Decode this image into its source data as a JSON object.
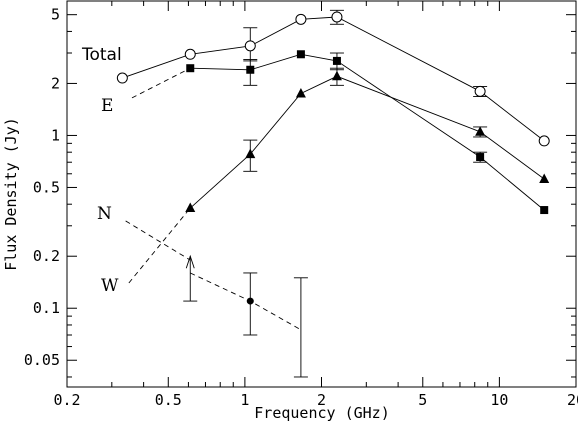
{
  "chart_data": {
    "type": "scatter",
    "title": "",
    "xlabel": "Frequency (GHz)",
    "ylabel": "Flux Density (Jy)",
    "xscale": "log",
    "yscale": "log",
    "xlim": [
      0.2,
      20
    ],
    "ylim": [
      0.035,
      6
    ],
    "x_ticks": [
      {
        "value": 0.2,
        "label": "0.2"
      },
      {
        "value": 0.5,
        "label": "0.5"
      },
      {
        "value": 1,
        "label": "1"
      },
      {
        "value": 2,
        "label": "2"
      },
      {
        "value": 5,
        "label": "5"
      },
      {
        "value": 10,
        "label": "10"
      },
      {
        "value": 20,
        "label": "20"
      }
    ],
    "y_ticks": [
      {
        "value": 0.05,
        "label": "0.05"
      },
      {
        "value": 0.1,
        "label": "0.1"
      },
      {
        "value": 0.2,
        "label": "0.2"
      },
      {
        "value": 0.5,
        "label": "0.5"
      },
      {
        "value": 1,
        "label": "1"
      },
      {
        "value": 2,
        "label": "2"
      },
      {
        "value": 5,
        "label": "5"
      }
    ],
    "series": [
      {
        "name": "Total",
        "marker": "open-circle",
        "line": "solid",
        "points": [
          {
            "x": 0.33,
            "y": 2.15
          },
          {
            "x": 0.61,
            "y": 2.95
          },
          {
            "x": 1.05,
            "y": 3.3,
            "ylo": 2.7,
            "yhi": 4.2
          },
          {
            "x": 1.66,
            "y": 4.7
          },
          {
            "x": 2.3,
            "y": 4.85,
            "ylo": 4.4,
            "yhi": 5.3
          },
          {
            "x": 8.4,
            "y": 1.8,
            "ylo": 1.68,
            "yhi": 1.92
          },
          {
            "x": 15.0,
            "y": 0.93
          }
        ]
      },
      {
        "name": "E",
        "marker": "filled-square",
        "line": "solid",
        "points": [
          {
            "x": 0.61,
            "y": 2.45
          },
          {
            "x": 1.05,
            "y": 2.4,
            "ylo": 1.95,
            "yhi": 2.75
          },
          {
            "x": 1.66,
            "y": 2.95
          },
          {
            "x": 2.3,
            "y": 2.7,
            "ylo": 2.4,
            "yhi": 3.0
          },
          {
            "x": 8.4,
            "y": 0.75,
            "ylo": 0.7,
            "yhi": 0.8
          },
          {
            "x": 15.0,
            "y": 0.37
          }
        ]
      },
      {
        "name": "W",
        "marker": "filled-triangle",
        "line": "solid",
        "points": [
          {
            "x": 0.61,
            "y": 0.38
          },
          {
            "x": 1.05,
            "y": 0.78,
            "ylo": 0.62,
            "yhi": 0.94
          },
          {
            "x": 1.66,
            "y": 1.75
          },
          {
            "x": 2.3,
            "y": 2.2,
            "ylo": 1.95,
            "yhi": 2.45
          },
          {
            "x": 8.4,
            "y": 1.05,
            "ylo": 0.98,
            "yhi": 1.12
          },
          {
            "x": 15.0,
            "y": 0.56
          }
        ]
      },
      {
        "name": "N",
        "marker": "filled-circle",
        "line": "dashed",
        "points": [
          {
            "x": 0.61,
            "y": 0.16,
            "ylo": 0.11,
            "yhi": 0.2,
            "lower_limit": true
          },
          {
            "x": 1.05,
            "y": 0.11,
            "ylo": 0.07,
            "yhi": 0.16
          },
          {
            "x": 1.66,
            "y": 0.075,
            "ylo": 0.04,
            "yhi": 0.15,
            "no_marker": true
          }
        ]
      }
    ],
    "annotations": [
      {
        "text": "Total"
      },
      {
        "text": "E"
      },
      {
        "text": "N"
      },
      {
        "text": "W"
      }
    ],
    "extrapolations": [
      {
        "series": "E",
        "from": {
          "x": 0.36,
          "y": 1.65
        },
        "to": {
          "x": 0.61,
          "y": 2.45
        },
        "line": "dashed"
      },
      {
        "series": "N",
        "from": {
          "x": 0.34,
          "y": 0.32
        },
        "to": {
          "x": 0.61,
          "y": 0.19
        },
        "line": "dashed"
      },
      {
        "series": "W",
        "from": {
          "x": 0.35,
          "y": 0.14
        },
        "to": {
          "x": 0.61,
          "y": 0.38
        },
        "line": "dashed"
      }
    ],
    "grid": false,
    "legend": "none"
  }
}
